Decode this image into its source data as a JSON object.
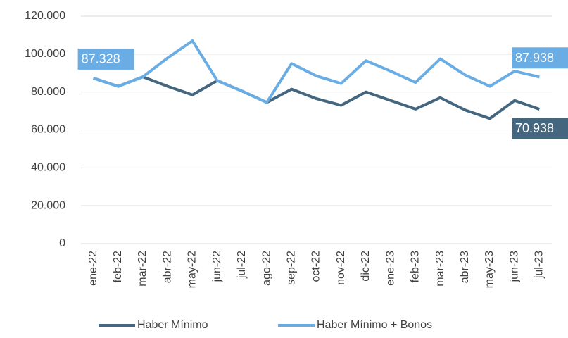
{
  "chart_data": {
    "type": "line",
    "categories": [
      "ene-22",
      "feb-22",
      "mar-22",
      "abr-22",
      "may-22",
      "jun-22",
      "jul-22",
      "ago-22",
      "sep-22",
      "oct-22",
      "nov-22",
      "dic-22",
      "ene-23",
      "feb-23",
      "mar-23",
      "abr-23",
      "may-23",
      "jun-23",
      "jul-23"
    ],
    "series": [
      {
        "name": "Haber Mínimo",
        "color": "#44667f",
        "values": [
          87328,
          83000,
          88000,
          83000,
          78500,
          86000,
          80500,
          74500,
          81500,
          76500,
          73000,
          80000,
          75500,
          71000,
          77000,
          70500,
          66000,
          75500,
          70938
        ],
        "value_labels": [
          null,
          null,
          null,
          null,
          null,
          null,
          null,
          null,
          null,
          null,
          null,
          null,
          null,
          null,
          null,
          null,
          null,
          null,
          "70.938"
        ]
      },
      {
        "name": "Haber Mínimo + Bonos",
        "color": "#6aade4",
        "values": [
          87328,
          83000,
          88000,
          98000,
          107000,
          86000,
          80500,
          74500,
          95000,
          88500,
          84500,
          96500,
          91000,
          85000,
          97500,
          89000,
          83000,
          91000,
          87938
        ],
        "value_labels": [
          "87.328",
          null,
          null,
          null,
          null,
          null,
          null,
          null,
          null,
          null,
          null,
          null,
          null,
          null,
          null,
          null,
          null,
          null,
          "87.938"
        ]
      }
    ],
    "ylim": [
      0,
      120000
    ],
    "yticks": [
      0,
      {
        "value": 20000,
        "label": "20.000"
      },
      {
        "value": 40000,
        "label": "40.000"
      },
      {
        "value": 60000,
        "label": "60.000"
      },
      {
        "value": 80000,
        "label": "80.000"
      },
      {
        "value": 100000,
        "label": "100.000"
      },
      {
        "value": 120000,
        "label": "120.000"
      }
    ],
    "grid": true,
    "legend": "bottom"
  }
}
